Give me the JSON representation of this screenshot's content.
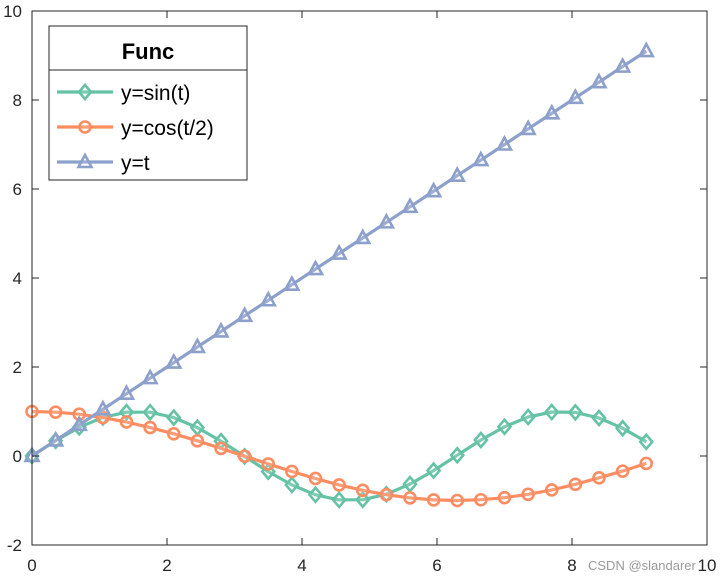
{
  "chart_data": {
    "type": "line",
    "title": "",
    "xlabel": "",
    "ylabel": "",
    "xlim": [
      0,
      10
    ],
    "ylim": [
      -2,
      10
    ],
    "xticks": [
      0,
      2,
      4,
      6,
      8,
      10
    ],
    "yticks": [
      -2,
      0,
      2,
      4,
      6,
      8,
      10
    ],
    "grid": false,
    "box": true,
    "x": [
      0,
      0.35,
      0.7,
      1.05,
      1.4,
      1.75,
      2.1,
      2.45,
      2.8,
      3.15,
      3.5,
      3.85,
      4.2,
      4.55,
      4.9,
      5.25,
      5.6,
      5.95,
      6.3,
      6.65,
      7.0,
      7.35,
      7.7,
      8.05,
      8.4,
      8.75,
      9.1
    ],
    "legend": {
      "title": "Func",
      "position": "top-left"
    },
    "series": [
      {
        "name": "y=sin(t)",
        "color": "#66c2a5",
        "marker": "diamond",
        "values": [
          0,
          0.343,
          0.644,
          0.867,
          0.985,
          0.984,
          0.863,
          0.638,
          0.335,
          -0.008,
          -0.351,
          -0.65,
          -0.872,
          -0.987,
          -0.982,
          -0.859,
          -0.631,
          -0.327,
          0.017,
          0.359,
          0.657,
          0.876,
          0.988,
          0.98,
          0.854,
          0.624,
          0.319
        ]
      },
      {
        "name": "y=cos(t/2)",
        "color": "#fc8d62",
        "marker": "circle",
        "values": [
          1,
          0.985,
          0.939,
          0.863,
          0.765,
          0.639,
          0.498,
          0.341,
          0.17,
          -0.004,
          -0.178,
          -0.348,
          -0.505,
          -0.65,
          -0.771,
          -0.869,
          -0.942,
          -0.987,
          -1.0,
          -0.983,
          -0.936,
          -0.86,
          -0.762,
          -0.637,
          -0.49,
          -0.34,
          -0.166
        ]
      },
      {
        "name": "y=t",
        "color": "#8da0cb",
        "marker": "triangle",
        "values": [
          0,
          0.35,
          0.7,
          1.05,
          1.4,
          1.75,
          2.1,
          2.45,
          2.8,
          3.15,
          3.5,
          3.85,
          4.2,
          4.55,
          4.9,
          5.25,
          5.6,
          5.95,
          6.3,
          6.65,
          7.0,
          7.35,
          7.7,
          8.05,
          8.4,
          8.75,
          9.1
        ]
      }
    ]
  },
  "watermark": "CSDN @slandarer"
}
